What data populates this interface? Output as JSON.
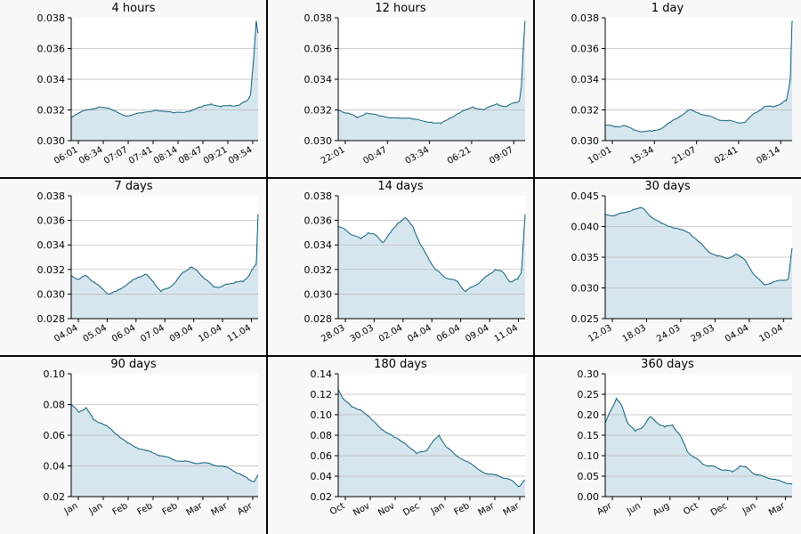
{
  "colors": {
    "line": "#0b5e7a",
    "fill": "#d6e6ee",
    "grid": "#b8b8b8",
    "panel_bg": "#f8f8f8",
    "plot_bg": "#ffffff"
  },
  "chart_data": [
    {
      "type": "area",
      "title": "4 hours",
      "ylim": [
        0.03,
        0.038
      ],
      "yticks": [
        "0.030",
        "0.032",
        "0.034",
        "0.036",
        "0.038"
      ],
      "xticks": [
        "06:01",
        "06:34",
        "07:07",
        "07:41",
        "08:14",
        "08:47",
        "09:21",
        "09:54"
      ],
      "x": [
        0,
        0.08,
        0.15,
        0.22,
        0.3,
        0.38,
        0.45,
        0.55,
        0.62,
        0.7,
        0.75,
        0.8,
        0.85,
        0.9,
        0.94,
        0.96,
        0.97,
        0.98,
        0.99,
        1.0
      ],
      "y": [
        0.0315,
        0.032,
        0.0322,
        0.032,
        0.0316,
        0.0318,
        0.032,
        0.0318,
        0.0319,
        0.0322,
        0.0324,
        0.0322,
        0.0323,
        0.0323,
        0.0326,
        0.033,
        0.0345,
        0.036,
        0.0378,
        0.037
      ],
      "grid": true
    },
    {
      "type": "area",
      "title": "12 hours",
      "ylim": [
        0.03,
        0.038
      ],
      "yticks": [
        "0.030",
        "0.032",
        "0.034",
        "0.036",
        "0.038"
      ],
      "xticks": [
        "22:01",
        "00:47",
        "03:34",
        "06:21",
        "09:07"
      ],
      "x": [
        0,
        0.05,
        0.1,
        0.15,
        0.22,
        0.3,
        0.4,
        0.5,
        0.55,
        0.6,
        0.65,
        0.72,
        0.78,
        0.85,
        0.9,
        0.95,
        0.97,
        0.98,
        0.99,
        1.0
      ],
      "y": [
        0.032,
        0.0318,
        0.0315,
        0.0318,
        0.0316,
        0.0315,
        0.0314,
        0.0312,
        0.0311,
        0.0315,
        0.0318,
        0.0322,
        0.032,
        0.0324,
        0.0322,
        0.0325,
        0.0326,
        0.0335,
        0.036,
        0.0378
      ],
      "grid": true
    },
    {
      "type": "area",
      "title": "1 day",
      "ylim": [
        0.03,
        0.038
      ],
      "yticks": [
        "0.030",
        "0.032",
        "0.034",
        "0.036",
        "0.038"
      ],
      "xticks": [
        "10:01",
        "15:34",
        "21:07",
        "02:41",
        "08:14"
      ],
      "x": [
        0,
        0.05,
        0.1,
        0.15,
        0.2,
        0.25,
        0.3,
        0.35,
        0.4,
        0.45,
        0.5,
        0.55,
        0.6,
        0.65,
        0.7,
        0.75,
        0.8,
        0.85,
        0.9,
        0.95,
        0.97,
        0.99,
        1.0
      ],
      "y": [
        0.031,
        0.0309,
        0.031,
        0.0307,
        0.0306,
        0.0306,
        0.0308,
        0.0312,
        0.0316,
        0.032,
        0.0318,
        0.0316,
        0.0314,
        0.0313,
        0.0312,
        0.0312,
        0.0318,
        0.0322,
        0.0322,
        0.0325,
        0.0326,
        0.034,
        0.0378
      ],
      "grid": true
    },
    {
      "type": "area",
      "title": "7 days",
      "ylim": [
        0.028,
        0.038
      ],
      "yticks": [
        "0.028",
        "0.030",
        "0.032",
        "0.034",
        "0.036",
        "0.038"
      ],
      "xticks": [
        "04.04",
        "05.04",
        "06.04",
        "07.04",
        "09.04",
        "10.04",
        "11.04"
      ],
      "x": [
        0,
        0.04,
        0.08,
        0.12,
        0.16,
        0.2,
        0.24,
        0.28,
        0.32,
        0.36,
        0.4,
        0.44,
        0.48,
        0.52,
        0.56,
        0.6,
        0.64,
        0.68,
        0.72,
        0.76,
        0.8,
        0.84,
        0.88,
        0.92,
        0.95,
        0.97,
        0.99,
        1.0
      ],
      "y": [
        0.0315,
        0.0312,
        0.0315,
        0.031,
        0.0305,
        0.03,
        0.0302,
        0.0306,
        0.031,
        0.0314,
        0.0316,
        0.031,
        0.0302,
        0.0305,
        0.031,
        0.0318,
        0.0322,
        0.0318,
        0.0312,
        0.0306,
        0.0306,
        0.0308,
        0.031,
        0.031,
        0.0315,
        0.032,
        0.0325,
        0.0365
      ],
      "grid": true
    },
    {
      "type": "area",
      "title": "14 days",
      "ylim": [
        0.028,
        0.038
      ],
      "yticks": [
        "0.028",
        "0.030",
        "0.032",
        "0.034",
        "0.036",
        "0.038"
      ],
      "xticks": [
        "28.03",
        "30.03",
        "02.04",
        "04.04",
        "06.04",
        "09.04",
        "11.04"
      ],
      "x": [
        0,
        0.04,
        0.08,
        0.12,
        0.16,
        0.2,
        0.24,
        0.28,
        0.32,
        0.36,
        0.4,
        0.44,
        0.48,
        0.52,
        0.56,
        0.6,
        0.64,
        0.68,
        0.72,
        0.76,
        0.8,
        0.84,
        0.88,
        0.92,
        0.96,
        0.98,
        1.0
      ],
      "y": [
        0.0355,
        0.0352,
        0.0348,
        0.0345,
        0.035,
        0.0348,
        0.0342,
        0.035,
        0.0358,
        0.0362,
        0.0355,
        0.034,
        0.033,
        0.032,
        0.0315,
        0.0312,
        0.031,
        0.0302,
        0.0306,
        0.031,
        0.0315,
        0.032,
        0.0318,
        0.031,
        0.0312,
        0.0318,
        0.0365
      ],
      "grid": true
    },
    {
      "type": "area",
      "title": "30 days",
      "ylim": [
        0.025,
        0.045
      ],
      "yticks": [
        "0.025",
        "0.030",
        "0.035",
        "0.040",
        "0.045"
      ],
      "xticks": [
        "12.03",
        "18.03",
        "24.03",
        "29.03",
        "04.04",
        "10.04"
      ],
      "x": [
        0,
        0.05,
        0.1,
        0.15,
        0.2,
        0.25,
        0.3,
        0.35,
        0.4,
        0.45,
        0.5,
        0.55,
        0.6,
        0.65,
        0.7,
        0.75,
        0.8,
        0.85,
        0.9,
        0.95,
        0.98,
        1.0
      ],
      "y": [
        0.042,
        0.0418,
        0.0422,
        0.0428,
        0.043,
        0.0415,
        0.0405,
        0.04,
        0.0395,
        0.039,
        0.0375,
        0.036,
        0.0352,
        0.0348,
        0.0355,
        0.0345,
        0.032,
        0.0305,
        0.031,
        0.0312,
        0.0315,
        0.0365
      ],
      "grid": true
    },
    {
      "type": "area",
      "title": "90 days",
      "ylim": [
        0.02,
        0.1
      ],
      "yticks": [
        "0.02",
        "0.04",
        "0.06",
        "0.08",
        "0.10"
      ],
      "xticks": [
        "Jan",
        "Jan",
        "Feb",
        "Feb",
        "Feb",
        "Mar",
        "Mar",
        "Apr"
      ],
      "x": [
        0,
        0.04,
        0.08,
        0.12,
        0.16,
        0.2,
        0.25,
        0.3,
        0.35,
        0.4,
        0.45,
        0.5,
        0.55,
        0.6,
        0.65,
        0.7,
        0.75,
        0.8,
        0.85,
        0.9,
        0.95,
        0.98,
        1.0
      ],
      "y": [
        0.08,
        0.075,
        0.078,
        0.07,
        0.068,
        0.065,
        0.06,
        0.055,
        0.052,
        0.05,
        0.048,
        0.046,
        0.044,
        0.043,
        0.042,
        0.042,
        0.041,
        0.04,
        0.038,
        0.035,
        0.031,
        0.03,
        0.034
      ],
      "grid": true
    },
    {
      "type": "area",
      "title": "180 days",
      "ylim": [
        0.02,
        0.14
      ],
      "yticks": [
        "0.02",
        "0.04",
        "0.06",
        "0.08",
        "0.10",
        "0.12",
        "0.14"
      ],
      "xticks": [
        "Oct",
        "Nov",
        "Nov",
        "Dec",
        "Jan",
        "Feb",
        "Mar",
        "Mar"
      ],
      "x": [
        0,
        0.03,
        0.07,
        0.12,
        0.18,
        0.24,
        0.3,
        0.36,
        0.42,
        0.47,
        0.5,
        0.54,
        0.58,
        0.62,
        0.68,
        0.74,
        0.8,
        0.86,
        0.9,
        0.94,
        0.97,
        1.0
      ],
      "y": [
        0.125,
        0.115,
        0.108,
        0.105,
        0.095,
        0.085,
        0.078,
        0.072,
        0.062,
        0.065,
        0.072,
        0.08,
        0.068,
        0.062,
        0.055,
        0.048,
        0.042,
        0.04,
        0.038,
        0.034,
        0.03,
        0.036
      ],
      "grid": true
    },
    {
      "type": "area",
      "title": "360 days",
      "ylim": [
        0.0,
        0.3
      ],
      "yticks": [
        "0.00",
        "0.05",
        "0.10",
        "0.15",
        "0.20",
        "0.25",
        "0.30"
      ],
      "xticks": [
        "Apr",
        "Jun",
        "Aug",
        "Oct",
        "Dec",
        "Jan",
        "Mar"
      ],
      "x": [
        0,
        0.03,
        0.06,
        0.09,
        0.12,
        0.16,
        0.2,
        0.24,
        0.28,
        0.32,
        0.36,
        0.4,
        0.44,
        0.48,
        0.52,
        0.56,
        0.6,
        0.64,
        0.68,
        0.72,
        0.76,
        0.8,
        0.84,
        0.88,
        0.92,
        0.96,
        1.0
      ],
      "y": [
        0.18,
        0.21,
        0.24,
        0.22,
        0.18,
        0.16,
        0.17,
        0.195,
        0.18,
        0.17,
        0.175,
        0.15,
        0.11,
        0.095,
        0.08,
        0.075,
        0.07,
        0.065,
        0.06,
        0.075,
        0.07,
        0.055,
        0.05,
        0.045,
        0.04,
        0.035,
        0.03
      ],
      "grid": true
    }
  ]
}
